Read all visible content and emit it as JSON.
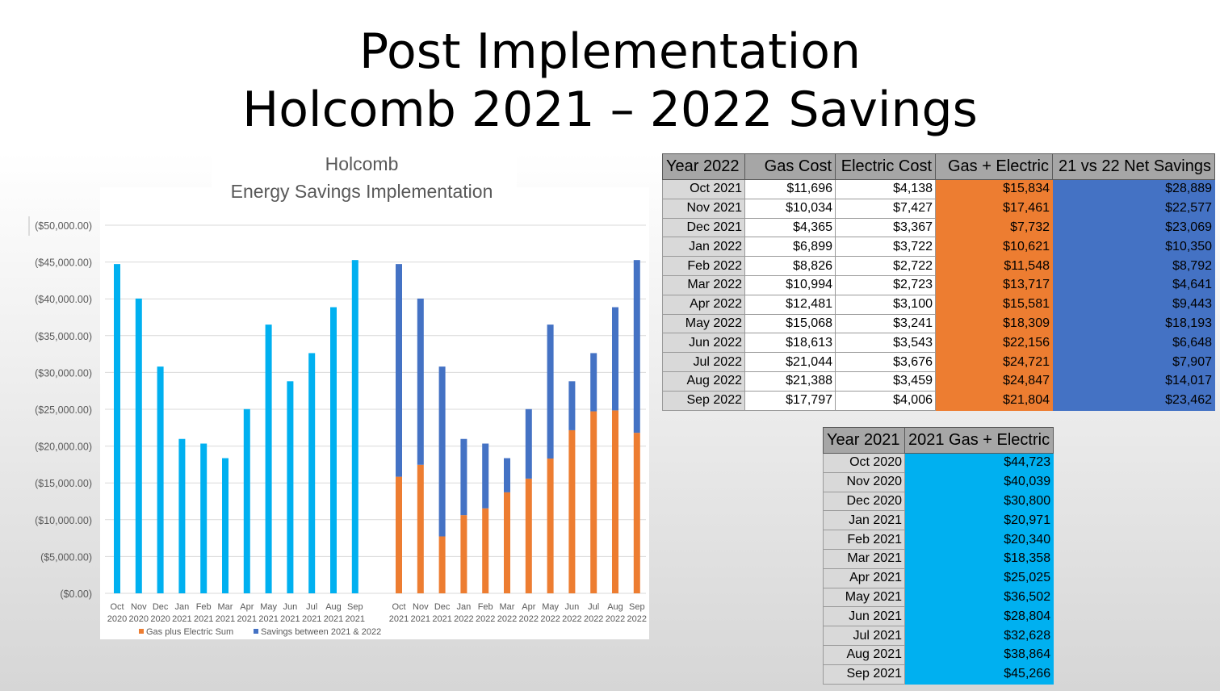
{
  "slide": {
    "title_line1": "Post Implementation",
    "title_line2": "Holcomb 2021 – 2022 Savings"
  },
  "colors": {
    "cyan": "#00b0f0",
    "orange": "#ed7d31",
    "blue": "#4472c4",
    "header_gray": "#a6a6a6",
    "month_gray": "#d9d9d9"
  },
  "chart_data": {
    "type": "bar",
    "title": "Holcomb",
    "subtitle": "Energy Savings Implementation",
    "ylim": [
      0,
      50000
    ],
    "y_ticks": [
      "($0.00)",
      "($5,000.00)",
      "($10,000.00)",
      "($15,000.00)",
      "($20,000.00)",
      "($25,000.00)",
      "($30,000.00)",
      "($35,000.00)",
      "($40,000.00)",
      "($45,000.00)",
      "($50,000.00)"
    ],
    "grid": true,
    "legend_position": "bottom",
    "groups": [
      {
        "categories": [
          [
            "Oct",
            "2020"
          ],
          [
            "Nov",
            "2020"
          ],
          [
            "Dec",
            "2020"
          ],
          [
            "Jan",
            "2021"
          ],
          [
            "Feb",
            "2021"
          ],
          [
            "Mar",
            "2021"
          ],
          [
            "Apr",
            "2021"
          ],
          [
            "May",
            "2021"
          ],
          [
            "Jun",
            "2021"
          ],
          [
            "Jul",
            "2021"
          ],
          [
            "Aug",
            "2021"
          ],
          [
            "Sep",
            "2021"
          ]
        ],
        "series": [
          {
            "color": "#00b0f0",
            "values": [
              44723,
              40039,
              30800,
              20971,
              20340,
              18358,
              25025,
              36502,
              28804,
              32628,
              38864,
              45266
            ]
          }
        ]
      },
      {
        "categories": [
          [
            "Oct",
            "2021"
          ],
          [
            "Nov",
            "2021"
          ],
          [
            "Dec",
            "2021"
          ],
          [
            "Jan",
            "2022"
          ],
          [
            "Feb",
            "2022"
          ],
          [
            "Mar",
            "2022"
          ],
          [
            "Apr",
            "2022"
          ],
          [
            "May",
            "2022"
          ],
          [
            "Jun",
            "2022"
          ],
          [
            "Jul",
            "2022"
          ],
          [
            "Aug",
            "2022"
          ],
          [
            "Sep",
            "2022"
          ]
        ],
        "series": [
          {
            "name": "Gas plus Electric Sum",
            "color": "#ed7d31",
            "values": [
              15834,
              17461,
              7732,
              10621,
              11548,
              13717,
              15581,
              18309,
              22156,
              24721,
              24847,
              21804
            ]
          },
          {
            "name": "Savings between 2021 & 2022",
            "color": "#4472c4",
            "values": [
              28889,
              22577,
              23069,
              10350,
              8792,
              4641,
              9443,
              18193,
              6648,
              7907,
              14017,
              23462
            ]
          }
        ]
      }
    ],
    "legend": [
      {
        "name": "Gas plus Electric Sum",
        "color": "#ed7d31"
      },
      {
        "name": "Savings between 2021 & 2022",
        "color": "#4472c4"
      }
    ]
  },
  "table_2022": {
    "headers": [
      "Year 2022",
      "Gas Cost",
      "Electric Cost",
      "Gas + Electric",
      "21 vs 22 Net Savings"
    ],
    "rows": [
      [
        "Oct 2021",
        "$11,696",
        "$4,138",
        "$15,834",
        "$28,889"
      ],
      [
        "Nov 2021",
        "$10,034",
        "$7,427",
        "$17,461",
        "$22,577"
      ],
      [
        "Dec 2021",
        "$4,365",
        "$3,367",
        "$7,732",
        "$23,069"
      ],
      [
        "Jan 2022",
        "$6,899",
        "$3,722",
        "$10,621",
        "$10,350"
      ],
      [
        "Feb 2022",
        "$8,826",
        "$2,722",
        "$11,548",
        "$8,792"
      ],
      [
        "Mar 2022",
        "$10,994",
        "$2,723",
        "$13,717",
        "$4,641"
      ],
      [
        "Apr 2022",
        "$12,481",
        "$3,100",
        "$15,581",
        "$9,443"
      ],
      [
        "May 2022",
        "$15,068",
        "$3,241",
        "$18,309",
        "$18,193"
      ],
      [
        "Jun 2022",
        "$18,613",
        "$3,543",
        "$22,156",
        "$6,648"
      ],
      [
        "Jul 2022",
        "$21,044",
        "$3,676",
        "$24,721",
        "$7,907"
      ],
      [
        "Aug 2022",
        "$21,388",
        "$3,459",
        "$24,847",
        "$14,017"
      ],
      [
        "Sep 2022",
        "$17,797",
        "$4,006",
        "$21,804",
        "$23,462"
      ]
    ]
  },
  "table_2021": {
    "headers": [
      "Year 2021",
      "2021 Gas + Electric"
    ],
    "rows": [
      [
        "Oct 2020",
        "$44,723"
      ],
      [
        "Nov 2020",
        "$40,039"
      ],
      [
        "Dec 2020",
        "$30,800"
      ],
      [
        "Jan 2021",
        "$20,971"
      ],
      [
        "Feb 2021",
        "$20,340"
      ],
      [
        "Mar 2021",
        "$18,358"
      ],
      [
        "Apr 2021",
        "$25,025"
      ],
      [
        "May 2021",
        "$36,502"
      ],
      [
        "Jun 2021",
        "$28,804"
      ],
      [
        "Jul 2021",
        "$32,628"
      ],
      [
        "Aug 2021",
        "$38,864"
      ],
      [
        "Sep 2021",
        "$45,266"
      ]
    ]
  }
}
